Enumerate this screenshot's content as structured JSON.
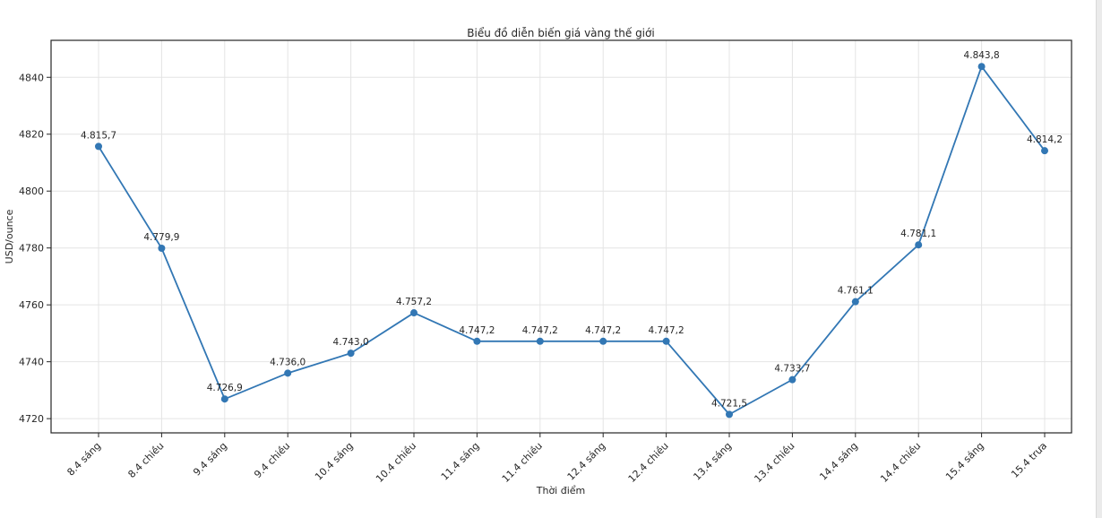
{
  "chart_data": {
    "type": "line",
    "title": "Biểu đồ diễn biến giá vàng thế giới",
    "xlabel": "Thời điểm",
    "ylabel": "USD/ounce",
    "categories": [
      "8.4 sáng",
      "8.4 chiều",
      "9.4 sáng",
      "9.4 chiều",
      "10.4 sáng",
      "10.4 chiều",
      "11.4 sáng",
      "11.4 chiều",
      "12.4 sáng",
      "12.4 chiều",
      "13.4 sáng",
      "13.4 chiều",
      "14.4 sáng",
      "14.4 chiều",
      "15.4 sáng",
      "15.4 trưa"
    ],
    "values": [
      4815.7,
      4779.9,
      4726.9,
      4736.0,
      4743.0,
      4757.2,
      4747.2,
      4747.2,
      4747.2,
      4747.2,
      4721.5,
      4733.7,
      4761.1,
      4781.1,
      4843.8,
      4814.2
    ],
    "point_labels": [
      "4.815,7",
      "4.779,9",
      "4.726,9",
      "4.736,0",
      "4.743,0",
      "4.757,2",
      "4.747,2",
      "4.747,2",
      "4.747,2",
      "4.747,2",
      "4.721,5",
      "4.733,7",
      "4.761,1",
      "4.781,1",
      "4.843,8",
      "4.814,2"
    ],
    "y_ticks": [
      4720,
      4740,
      4760,
      4780,
      4800,
      4820,
      4840
    ],
    "ylim": [
      4715,
      4853
    ],
    "grid": true,
    "legend": "none",
    "line_color": "#3277b4",
    "marker": "circle",
    "x_tick_rotation_deg": 45
  }
}
